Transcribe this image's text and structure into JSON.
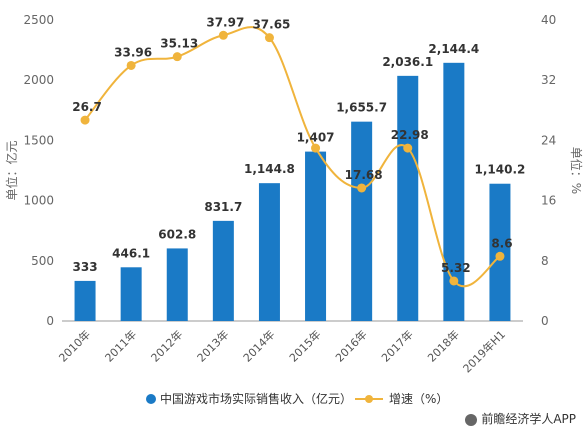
{
  "chart_data": {
    "type": "bar+line",
    "categories": [
      "2010年",
      "2011年",
      "2012年",
      "2013年",
      "2014年",
      "2015年",
      "2016年",
      "2017年",
      "2018年",
      "2019年H1"
    ],
    "series": [
      {
        "name": "中国游戏市场实际销售收入（亿元）",
        "type": "bar",
        "axis": "left",
        "values": [
          333,
          446.1,
          602.8,
          831.7,
          1144.8,
          1407,
          1655.7,
          2036.1,
          2144.4,
          1140.2
        ],
        "labels": [
          "333",
          "446.1",
          "602.8",
          "831.7",
          "1,144.8",
          "1,407",
          "1,655.7",
          "2,036.1",
          "2,144.4",
          "1,140.2"
        ]
      },
      {
        "name": "增速（%）",
        "type": "line",
        "axis": "right",
        "values": [
          26.7,
          33.96,
          35.13,
          37.97,
          37.65,
          22.98,
          17.68,
          22.98,
          5.32,
          8.6
        ],
        "labels": [
          "26.7",
          "33.96",
          "35.13",
          "37.97",
          "37.65",
          "",
          "17.68",
          "22.98",
          "5.32",
          "8.6"
        ]
      }
    ],
    "ylabel_left": "单位：亿元",
    "ylabel_right": "单位：%",
    "ylim_left": [
      0,
      2500
    ],
    "yticks_left": [
      0,
      500,
      1000,
      1500,
      2000,
      2500
    ],
    "ylim_right": [
      0,
      40
    ],
    "yticks_right": [
      0,
      8,
      16,
      24,
      32,
      40
    ],
    "grid": false,
    "legend": "bottom",
    "colors": {
      "bar": "#1a7ac6",
      "line": "#f0b43c"
    }
  },
  "source": "前瞻经济学人APP"
}
